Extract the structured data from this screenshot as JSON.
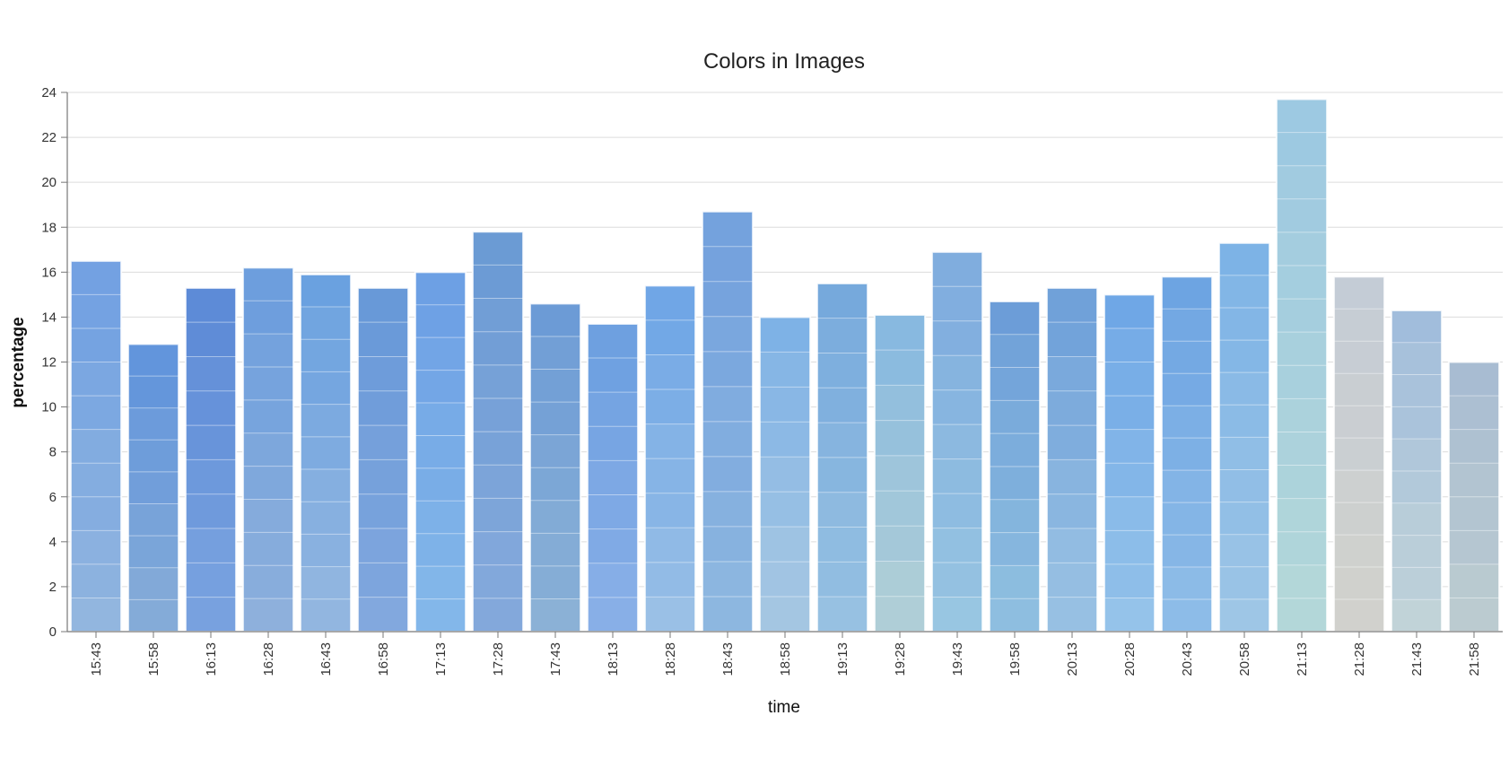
{
  "chart_data": {
    "type": "bar",
    "title": "Colors in Images",
    "xlabel": "time",
    "ylabel": "percentage",
    "ylim": [
      0,
      24
    ],
    "yticks": [
      0,
      2,
      4,
      6,
      8,
      10,
      12,
      14,
      16,
      18,
      20,
      22,
      24
    ],
    "grid": true,
    "stacked": true,
    "categories": [
      "15:43",
      "15:58",
      "16:13",
      "16:28",
      "16:43",
      "16:58",
      "17:13",
      "17:28",
      "17:43",
      "18:13",
      "18:28",
      "18:43",
      "18:58",
      "19:13",
      "19:28",
      "19:43",
      "19:58",
      "20:13",
      "20:28",
      "20:43",
      "20:58",
      "21:13",
      "21:28",
      "21:43",
      "21:58"
    ],
    "values": [
      16.5,
      12.8,
      15.3,
      16.2,
      15.9,
      15.3,
      16.0,
      17.8,
      14.6,
      13.7,
      15.4,
      18.7,
      14.0,
      15.5,
      14.1,
      16.9,
      14.7,
      15.3,
      15.0,
      15.8,
      17.3,
      23.7,
      15.8,
      14.3,
      12.0
    ],
    "bar_colors": [
      {
        "top": "#6f9fe2",
        "bottom": "#92b6df"
      },
      {
        "top": "#5f93dc",
        "bottom": "#86acd8"
      },
      {
        "top": "#5b89d6",
        "bottom": "#7ba4e0"
      },
      {
        "top": "#6a9cdd",
        "bottom": "#8fb1dc"
      },
      {
        "top": "#69a0e0",
        "bottom": "#95b8e0"
      },
      {
        "top": "#6798d8",
        "bottom": "#82a8de"
      },
      {
        "top": "#6c9fe4",
        "bottom": "#84b8ea"
      },
      {
        "top": "#6a9ad4",
        "bottom": "#86aadc"
      },
      {
        "top": "#6b9ad6",
        "bottom": "#8cb2d6"
      },
      {
        "top": "#6c9fe0",
        "bottom": "#8ab0e8"
      },
      {
        "top": "#6ea5e6",
        "bottom": "#9ac0e6"
      },
      {
        "top": "#719fdd",
        "bottom": "#8eb8e0"
      },
      {
        "top": "#7db1e6",
        "bottom": "#a8c8e2"
      },
      {
        "top": "#75a8dc",
        "bottom": "#98c2e2"
      },
      {
        "top": "#86b8e0",
        "bottom": "#b2d0d6"
      },
      {
        "top": "#7daade",
        "bottom": "#98c6e2"
      },
      {
        "top": "#6c9dd8",
        "bottom": "#90c0e0"
      },
      {
        "top": "#6c9ed8",
        "bottom": "#9cc4e4"
      },
      {
        "top": "#6ea6e6",
        "bottom": "#96c4ea"
      },
      {
        "top": "#6ca3e2",
        "bottom": "#90bee8"
      },
      {
        "top": "#7cb2e6",
        "bottom": "#9ec6e6"
      },
      {
        "top": "#9cc8e2",
        "bottom": "#b4d8d8"
      },
      {
        "top": "#c4ccd6",
        "bottom": "#d2d2cc"
      },
      {
        "top": "#a0bcdc",
        "bottom": "#c2d4d8"
      },
      {
        "top": "#a8bcd2",
        "bottom": "#bcccd0"
      }
    ]
  }
}
